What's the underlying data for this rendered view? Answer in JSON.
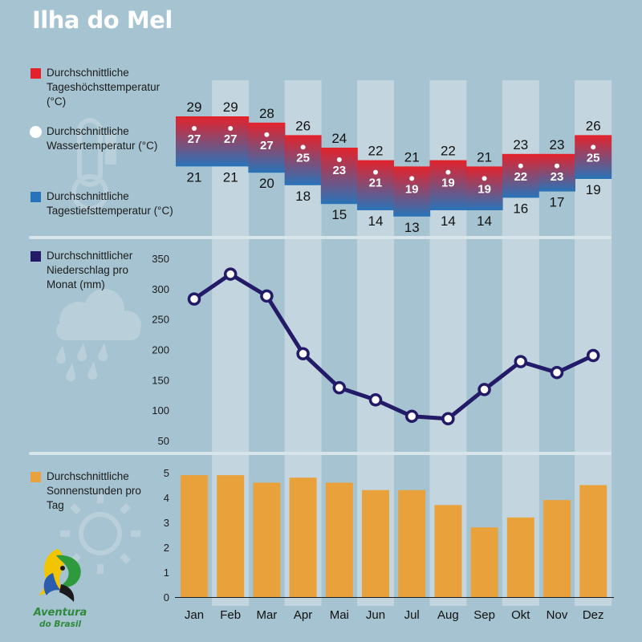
{
  "title": "Ilha do Mel",
  "legend": {
    "high_temp": "Durchschnittliche Tageshöchsttemperatur (°C)",
    "water_temp": "Durchschnittliche Wassertemperatur (°C)",
    "low_temp": "Durchschnittliche Tagestiefsttemperatur (°C)",
    "precipitation": "Durchschnittlicher Niederschlag pro Monat (mm)",
    "sunshine": "Durchschnittliche Sonnenstunden pro Tag"
  },
  "brand": {
    "line1": "Aventura",
    "line2": "do Brasil"
  },
  "colors": {
    "background": "#a5c3d0",
    "column_stripe": "#c3d6df",
    "high_temp": "#e4222b",
    "low_temp": "#2874ba",
    "precipitation": "#231a68",
    "sunshine": "#e9a23b",
    "water_temp": "#ffffff"
  },
  "chart_data": [
    {
      "type": "range-bar",
      "categories": [
        "Jan",
        "Feb",
        "Mar",
        "Apr",
        "Mai",
        "Jun",
        "Jul",
        "Aug",
        "Sep",
        "Okt",
        "Nov",
        "Dez"
      ],
      "series": [
        {
          "name": "Durchschnittliche Tageshöchsttemperatur (°C)",
          "values": [
            29,
            29,
            28,
            26,
            24,
            22,
            21,
            22,
            21,
            23,
            23,
            26
          ]
        },
        {
          "name": "Durchschnittliche Wassertemperatur (°C)",
          "values": [
            27,
            27,
            27,
            25,
            23,
            21,
            19,
            19,
            19,
            22,
            23,
            25
          ]
        },
        {
          "name": "Durchschnittliche Tagestiefsttemperatur (°C)",
          "values": [
            21,
            21,
            20,
            18,
            15,
            14,
            13,
            14,
            14,
            16,
            17,
            19
          ]
        }
      ]
    },
    {
      "type": "line",
      "categories": [
        "Jan",
        "Feb",
        "Mar",
        "Apr",
        "Mai",
        "Jun",
        "Jul",
        "Aug",
        "Sep",
        "Okt",
        "Nov",
        "Dez"
      ],
      "series": [
        {
          "name": "Durchschnittlicher Niederschlag pro Monat (mm)",
          "values": [
            283,
            324,
            288,
            193,
            137,
            117,
            90,
            86,
            134,
            180,
            162,
            190
          ]
        }
      ],
      "yticks": [
        50,
        100,
        150,
        200,
        250,
        300,
        350
      ],
      "ylim": [
        30,
        360
      ]
    },
    {
      "type": "bar",
      "categories": [
        "Jan",
        "Feb",
        "Mar",
        "Apr",
        "Mai",
        "Jun",
        "Jul",
        "Aug",
        "Sep",
        "Okt",
        "Nov",
        "Dez"
      ],
      "series": [
        {
          "name": "Durchschnittliche Sonnenstunden pro Tag",
          "values": [
            4.9,
            4.9,
            4.6,
            4.8,
            4.6,
            4.3,
            4.3,
            3.7,
            2.8,
            3.2,
            3.9,
            4.5
          ]
        }
      ],
      "yticks": [
        0,
        1,
        2,
        3,
        4,
        5
      ],
      "ylim": [
        0,
        5
      ]
    }
  ]
}
